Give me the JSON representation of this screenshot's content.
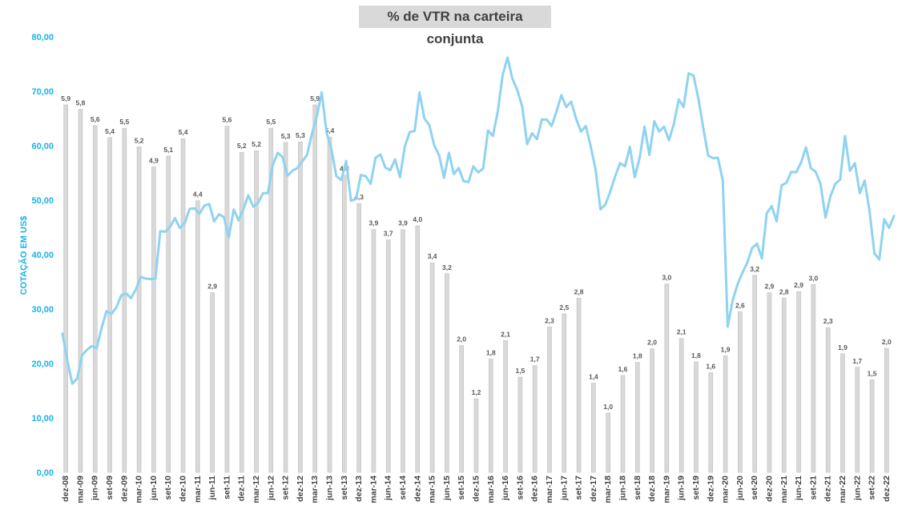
{
  "chart_data": {
    "type": "bar+line",
    "title": "% de VTR na carteira conjunta",
    "ylabel": "COTAÇÃO EM US$",
    "ylim": [
      0,
      80
    ],
    "yticks": [
      "0,00",
      "10,00",
      "20,00",
      "30,00",
      "40,00",
      "50,00",
      "60,00",
      "70,00",
      "80,00"
    ],
    "grid": false,
    "x_tick_labels": [
      "dez-08",
      "mar-09",
      "jun-09",
      "set-09",
      "dez-09",
      "mar-10",
      "jun-10",
      "set-10",
      "dez-10",
      "mar-11",
      "jun-11",
      "set-11",
      "dez-11",
      "mar-12",
      "jun-12",
      "set-12",
      "dez-12",
      "mar-13",
      "jun-13",
      "set-13",
      "dez-13",
      "mar-14",
      "jun-14",
      "set-14",
      "dez-14",
      "mar-15",
      "jun-15",
      "set-15",
      "dez-15",
      "mar-16",
      "jun-16",
      "set-16",
      "dez-16",
      "mar-17",
      "jun-17",
      "set-17",
      "dez-17",
      "mar-18",
      "jun-18",
      "set-18",
      "dez-18",
      "mar-19",
      "jun-19",
      "set-19",
      "dez-19",
      "mar-20",
      "jun-20",
      "set-20",
      "dez-20",
      "mar-21",
      "jun-21",
      "set-21",
      "dez-21",
      "mar-22",
      "jun-22",
      "set-22",
      "dez-22"
    ],
    "bars": {
      "colors": {
        "fill": "#d9d9d9",
        "line": "#8fd3f0"
      },
      "labels": [
        "5,9",
        "5,8",
        "5,6",
        "5,4",
        "5,5",
        "5,2",
        "4,9",
        "5,1",
        "5,4",
        "4,4",
        "2,9",
        "5,6",
        "5,2",
        "5,2",
        "5,5",
        "5,3",
        "5,3",
        "5,9",
        "5,4",
        "4,8",
        "4,3",
        "3,9",
        "3,7",
        "3,9",
        "4,0",
        "3,4",
        "3,2",
        "2,0",
        "1,2",
        "1,8",
        "2,1",
        "1,5",
        "1,7",
        "2,3",
        "2,5",
        "2,8",
        "1,4",
        "1,0",
        "1,6",
        "1,8",
        "2,0",
        "3,0",
        "2,1",
        "1,8",
        "1,6",
        "1,9",
        "2,6",
        "3,2",
        "2,9",
        "2,8",
        "2,9",
        "3,0",
        "2,3",
        "1,9",
        "1,7",
        "1,5",
        "2,0"
      ],
      "values_in_axis_units": [
        67.5,
        66.7,
        63.7,
        61.5,
        63.2,
        59.8,
        56.1,
        58.1,
        61.3,
        49.9,
        33.0,
        63.6,
        58.8,
        59.1,
        63.2,
        60.6,
        60.7,
        67.5,
        61.6,
        54.6,
        49.4,
        44.6,
        42.7,
        44.6,
        45.3,
        38.5,
        36.5,
        23.3,
        13.5,
        20.8,
        24.2,
        17.5,
        19.6,
        26.7,
        29.1,
        32.0,
        16.4,
        10.9,
        17.8,
        20.2,
        22.7,
        34.6,
        24.6,
        20.3,
        18.3,
        21.4,
        29.5,
        36.2,
        33.0,
        32.0,
        33.2,
        34.5,
        26.6,
        21.8,
        19.3,
        17.0,
        22.8
      ]
    },
    "line": {
      "name": "",
      "values": [
        25.5,
        20.5,
        16.3,
        17.2,
        21.5,
        22.5,
        23.2,
        22.8,
        26.5,
        29.6,
        29.1,
        30.3,
        32.5,
        32.9,
        32.0,
        33.6,
        35.9,
        35.6,
        35.5,
        35.6,
        44.3,
        44.2,
        45.1,
        46.7,
        44.9,
        45.8,
        48.4,
        48.5,
        47.5,
        49.0,
        49.3,
        46.1,
        47.4,
        46.9,
        43.1,
        48.3,
        46.3,
        48.4,
        50.9,
        48.8,
        49.5,
        51.3,
        51.3,
        56.5,
        58.7,
        57.9,
        54.5,
        55.4,
        55.9,
        57.1,
        58.3,
        62.2,
        65.4,
        69.8,
        62.4,
        59.3,
        54.4,
        53.7,
        57.2,
        49.9,
        50.2,
        54.6,
        54.4,
        53.0,
        57.8,
        58.4,
        56.0,
        55.5,
        57.5,
        54.2,
        59.9,
        62.5,
        62.7,
        69.8,
        65.0,
        63.8,
        60.1,
        58.2,
        54.1,
        58.7,
        54.8,
        55.9,
        53.5,
        53.3,
        56.2,
        55.1,
        55.8,
        62.8,
        61.8,
        66.3,
        73.0,
        76.2,
        72.3,
        70.2,
        67.1,
        60.3,
        62.3,
        61.2,
        64.8,
        64.8,
        63.6,
        66.3,
        69.3,
        67.1,
        68.1,
        65.0,
        62.6,
        63.6,
        59.9,
        55.6,
        48.3,
        49.2,
        51.6,
        54.4,
        56.8,
        56.2,
        59.8,
        54.2,
        57.8,
        63.5,
        58.3,
        64.5,
        62.6,
        63.5,
        61.0,
        64.0,
        68.5,
        67.1,
        73.3,
        72.9,
        68.7,
        63.3,
        58.2,
        57.7,
        57.8,
        53.6,
        26.8,
        31.5,
        34.5,
        36.6,
        38.5,
        41.2,
        42.0,
        39.3,
        47.6,
        48.9,
        46.1,
        52.7,
        53.2,
        55.2,
        55.1,
        56.9,
        59.7,
        55.9,
        55.2,
        52.9,
        46.8,
        50.7,
        53.0,
        53.8,
        61.8,
        55.4,
        56.8,
        51.3,
        53.6,
        48.0,
        40.2,
        39.1,
        46.5,
        44.9,
        47.1
      ]
    }
  }
}
